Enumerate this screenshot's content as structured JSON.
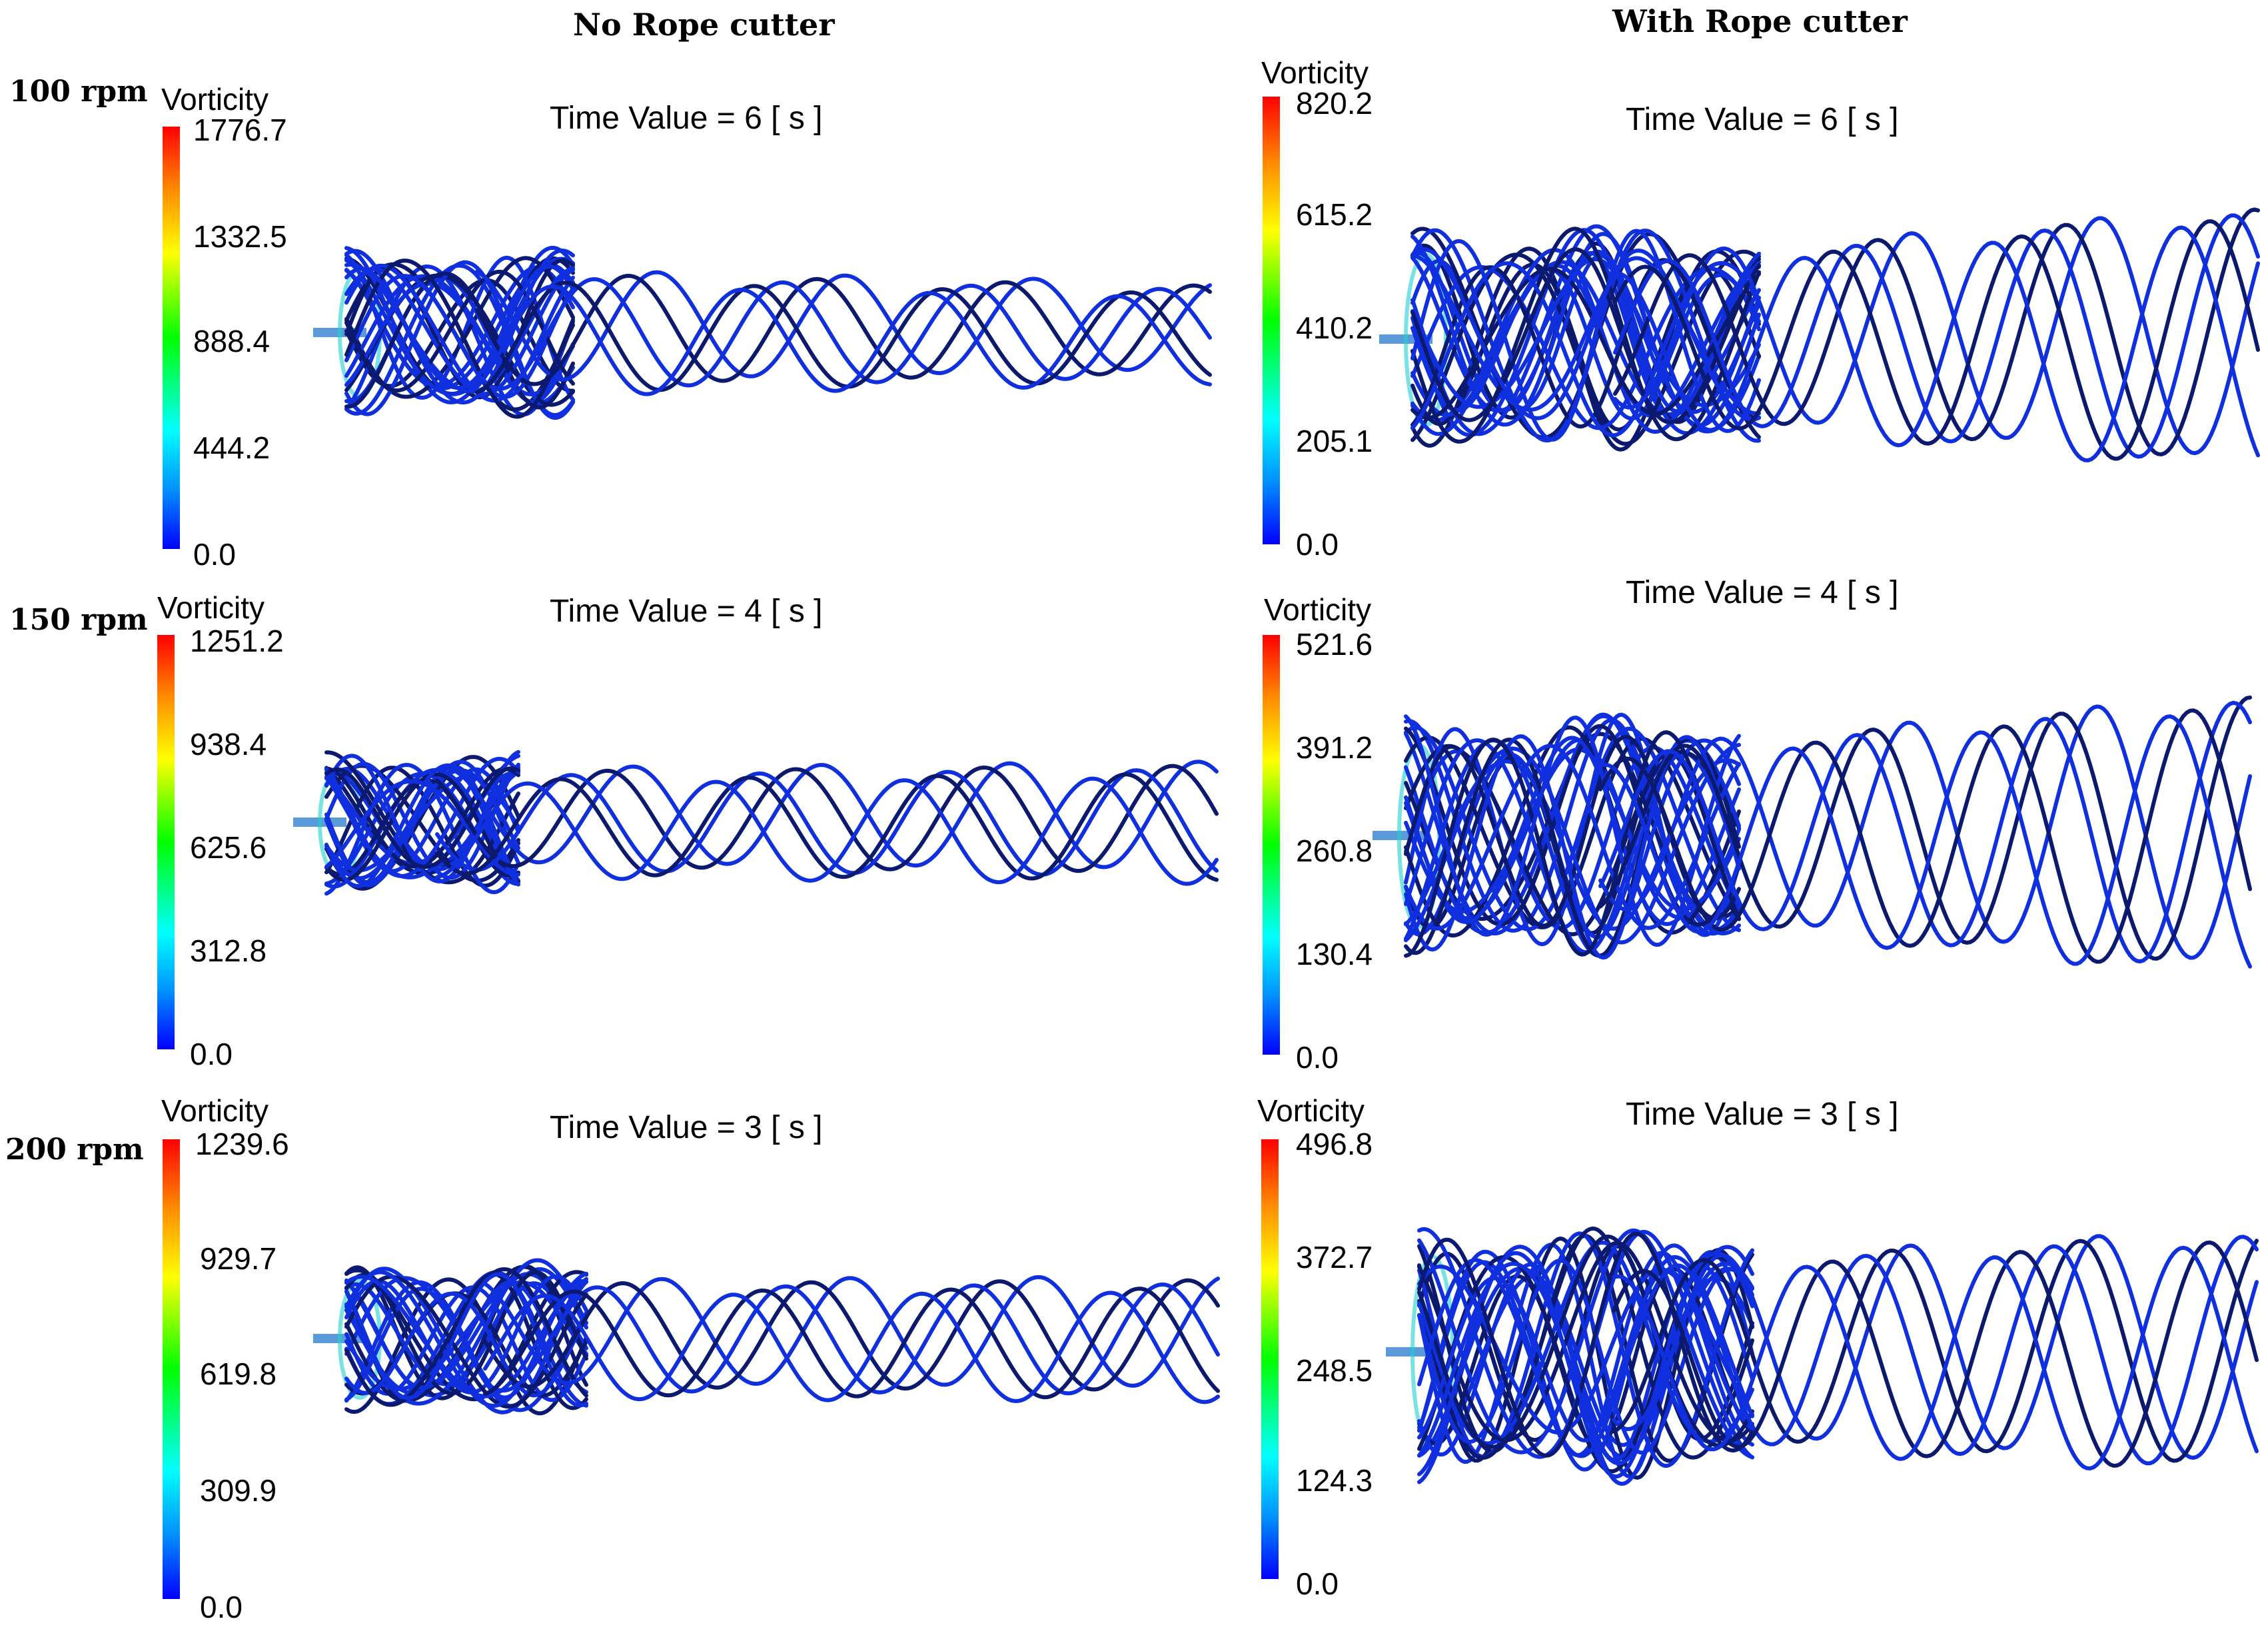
{
  "columns": [
    "No Rope cutter",
    "With Rope cutter"
  ],
  "rows": [
    "100 rpm",
    "150 rpm",
    "200 rpm"
  ],
  "colors": {
    "streamline_dark": "#0b1a6e",
    "streamline_blue": "#1030e0",
    "hub": "#5a9ad8",
    "cyan_blades": "#20d0d0"
  },
  "panels": [
    {
      "id": "p1",
      "legend_title": "Vorticity",
      "time": "Time Value = 6 [ s ]",
      "ticks": [
        "1776.7",
        "1332.5",
        "888.4",
        "444.2",
        "0.0"
      ]
    },
    {
      "id": "p2",
      "legend_title": "Vorticity",
      "time": "Time Value = 6 [ s ]",
      "ticks": [
        "820.2",
        "615.2",
        "410.2",
        "205.1",
        "0.0"
      ]
    },
    {
      "id": "p3",
      "legend_title": "Vorticity",
      "time": "Time Value = 4 [ s ]",
      "ticks": [
        "1251.2",
        "938.4",
        "625.6",
        "312.8",
        "0.0"
      ]
    },
    {
      "id": "p4",
      "legend_title": "Vorticity",
      "time": "Time Value = 4 [ s ]",
      "ticks": [
        "521.6",
        "391.2",
        "260.8",
        "130.4",
        "0.0"
      ]
    },
    {
      "id": "p5",
      "legend_title": "Vorticity",
      "time": "Time Value = 3 [ s ]",
      "ticks": [
        "1239.6",
        "929.7",
        "619.8",
        "309.9",
        "0.0"
      ]
    },
    {
      "id": "p6",
      "legend_title": "Vorticity",
      "time": "Time Value = 3 [ s ]",
      "ticks": [
        "496.8",
        "372.7",
        "248.5",
        "124.3",
        "0.0"
      ]
    }
  ]
}
